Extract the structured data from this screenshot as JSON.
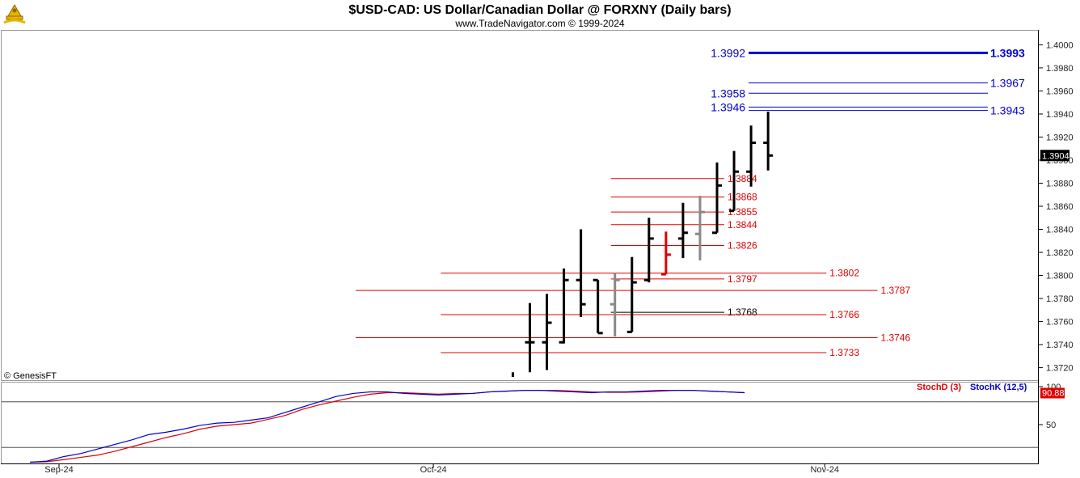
{
  "header": {
    "title": "$USD-CAD:  US Dollar/Canadian Dollar @ FORXNY  (Daily bars)",
    "subtitle": "www.TradeNavigator.com © 1999-2024",
    "credit": "© GenesisFT",
    "logo_icon": "trade-navigator-logo-icon"
  },
  "chart_data": [
    {
      "type": "ohlc",
      "ylim": [
        1.3712,
        1.4008
      ],
      "y_ticks": [
        "1.4000",
        "1.3980",
        "1.3960",
        "1.3940",
        "1.3920",
        "1.3900",
        "1.3880",
        "1.3860",
        "1.3840",
        "1.3820",
        "1.3800",
        "1.3780",
        "1.3760",
        "1.3740",
        "1.3720"
      ],
      "x_labels": [
        {
          "label": "Sep-24",
          "bar": 0
        },
        {
          "label": "Oct-24",
          "bar": 22
        },
        {
          "label": "Nov-24",
          "bar": 45
        }
      ],
      "last_price": "1.3904",
      "bars": [
        {
          "i": 29,
          "high": 1.3776,
          "low": 1.3716,
          "open": 1.3742,
          "close": 1.3742,
          "color": "#000000"
        },
        {
          "i": 30,
          "high": 1.3784,
          "low": 1.3718,
          "open": 1.3742,
          "close": 1.3759,
          "color": "#000000"
        },
        {
          "i": 31,
          "high": 1.3806,
          "low": 1.3741,
          "open": 1.3742,
          "close": 1.3796,
          "color": "#000000"
        },
        {
          "i": 32,
          "high": 1.384,
          "low": 1.3764,
          "open": 1.3796,
          "close": 1.3775,
          "color": "#000000"
        },
        {
          "i": 33,
          "high": 1.3796,
          "low": 1.375,
          "open": 1.3796,
          "close": 1.375,
          "color": "#000000"
        },
        {
          "i": 34,
          "high": 1.3802,
          "low": 1.3747,
          "open": 1.3775,
          "close": 1.3796,
          "color": "#888888"
        },
        {
          "i": 35,
          "high": 1.3816,
          "low": 1.3751,
          "open": 1.3751,
          "close": 1.3794,
          "color": "#000000"
        },
        {
          "i": 36,
          "high": 1.385,
          "low": 1.3794,
          "open": 1.3796,
          "close": 1.3832,
          "color": "#000000"
        },
        {
          "i": 37,
          "high": 1.3838,
          "low": 1.3801,
          "open": 1.3801,
          "close": 1.3818,
          "color": "#e00000"
        },
        {
          "i": 38,
          "high": 1.3863,
          "low": 1.3815,
          "open": 1.3832,
          "close": 1.3837,
          "color": "#000000"
        },
        {
          "i": 39,
          "high": 1.3869,
          "low": 1.3813,
          "open": 1.3836,
          "close": 1.3855,
          "color": "#888888"
        },
        {
          "i": 40,
          "high": 1.3898,
          "low": 1.3837,
          "open": 1.3837,
          "close": 1.3878,
          "color": "#000000"
        },
        {
          "i": 41,
          "high": 1.3908,
          "low": 1.3856,
          "open": 1.3856,
          "close": 1.389,
          "color": "#000000"
        },
        {
          "i": 42,
          "high": 1.393,
          "low": 1.3877,
          "open": 1.389,
          "close": 1.3915,
          "color": "#000000"
        },
        {
          "i": 43,
          "high": 1.3942,
          "low": 1.3891,
          "open": 1.3915,
          "close": 1.3904,
          "color": "#000000"
        }
      ],
      "blue_levels": [
        {
          "left": "1.3992",
          "right": "1.3993",
          "value": 1.3993,
          "from_bar": 42,
          "thick": true
        },
        {
          "left": "",
          "right": "1.3967",
          "value": 1.3967,
          "from_bar": 42,
          "thick": false
        },
        {
          "left": "1.3958",
          "right": "",
          "value": 1.3958,
          "from_bar": 42,
          "thick": false
        },
        {
          "left": "1.3946",
          "right": "",
          "value": 1.3946,
          "from_bar": 42,
          "thick": false
        },
        {
          "left": "",
          "right": "1.3943",
          "value": 1.3943,
          "from_bar": 42,
          "thick": false
        }
      ],
      "red_levels": [
        {
          "label": "1.3884",
          "value": 1.3884,
          "from_bar": 34,
          "to_bar": 40,
          "color": "#e00000"
        },
        {
          "label": "1.3868",
          "value": 1.3868,
          "from_bar": 34,
          "to_bar": 40,
          "color": "#e00000"
        },
        {
          "label": "1.3855",
          "value": 1.3855,
          "from_bar": 34,
          "to_bar": 40,
          "color": "#e00000"
        },
        {
          "label": "1.3844",
          "value": 1.3844,
          "from_bar": 34,
          "to_bar": 40,
          "color": "#e00000"
        },
        {
          "label": "1.3826",
          "value": 1.3826,
          "from_bar": 34,
          "to_bar": 40,
          "color": "#e00000"
        },
        {
          "label": "1.3802",
          "value": 1.3802,
          "from_bar": 24,
          "to_bar": 46,
          "color": "#e00000"
        },
        {
          "label": "1.3797",
          "value": 1.3797,
          "from_bar": 34,
          "to_bar": 40,
          "color": "#e00000"
        },
        {
          "label": "1.3787",
          "value": 1.3787,
          "from_bar": 19,
          "to_bar": 49,
          "color": "#e00000"
        },
        {
          "label": "1.3768",
          "value": 1.3768,
          "from_bar": 34,
          "to_bar": 40,
          "color": "#000000"
        },
        {
          "label": "1.3766",
          "value": 1.3766,
          "from_bar": 24,
          "to_bar": 46,
          "color": "#e00000"
        },
        {
          "label": "1.3746",
          "value": 1.3746,
          "from_bar": 19,
          "to_bar": 49,
          "color": "#e00000"
        },
        {
          "label": "1.3733",
          "value": 1.3733,
          "from_bar": 24,
          "to_bar": 46,
          "color": "#e00000"
        }
      ]
    },
    {
      "type": "line",
      "ylim": [
        0,
        100
      ],
      "y_ticks": [
        "100",
        "50"
      ],
      "guide_levels": [
        80,
        20
      ],
      "series": [
        {
          "name": "StochD (3)",
          "color": "#e00000",
          "values": [
            0.5,
            1.2,
            4,
            7,
            10,
            15,
            21,
            27,
            33,
            38,
            44,
            48,
            50,
            52,
            57,
            62,
            70,
            76,
            81,
            86,
            90,
            92,
            92,
            91,
            90,
            91,
            91,
            93,
            94,
            95,
            95,
            95,
            94,
            93,
            92.5,
            92.5,
            93,
            94,
            95,
            95,
            94,
            93,
            92
          ]
        },
        {
          "name": "StochK (12,5)",
          "color": "#0000cc",
          "values": [
            0.5,
            2,
            8,
            12,
            18,
            24,
            30,
            37,
            40,
            44,
            49,
            52,
            53,
            56,
            59,
            66,
            73,
            80,
            87,
            91,
            93,
            93,
            91,
            90,
            89,
            90,
            91,
            93,
            94,
            95,
            95,
            94,
            93,
            92,
            93,
            93,
            94,
            95,
            95,
            95,
            94,
            93,
            92
          ]
        }
      ],
      "last_value": "90.88"
    }
  ]
}
